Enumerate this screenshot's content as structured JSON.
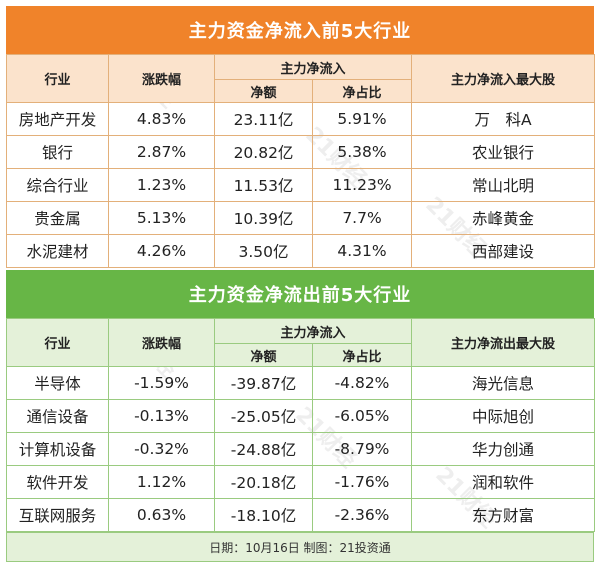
{
  "inflow": {
    "title": "主力资金净流入前5大行业",
    "headers": {
      "industry": "行业",
      "change": "涨跌幅",
      "flow_group": "主力净流入",
      "amount": "净额",
      "ratio": "净占比",
      "top_stock": "主力净流入最大股"
    },
    "rows": [
      {
        "industry": "房地产开发",
        "change": "4.83%",
        "amount": "23.11亿",
        "ratio": "5.91%",
        "stock": "万　科A"
      },
      {
        "industry": "银行",
        "change": "2.87%",
        "amount": "20.82亿",
        "ratio": "5.38%",
        "stock": "农业银行"
      },
      {
        "industry": "综合行业",
        "change": "1.23%",
        "amount": "11.53亿",
        "ratio": "11.23%",
        "stock": "常山北明"
      },
      {
        "industry": "贵金属",
        "change": "5.13%",
        "amount": "10.39亿",
        "ratio": "7.7%",
        "stock": "赤峰黄金"
      },
      {
        "industry": "水泥建材",
        "change": "4.26%",
        "amount": "3.50亿",
        "ratio": "4.31%",
        "stock": "西部建设"
      }
    ]
  },
  "outflow": {
    "title": "主力资金净流出前5大行业",
    "headers": {
      "industry": "行业",
      "change": "涨跌幅",
      "flow_group": "主力净流入",
      "amount": "净额",
      "ratio": "净占比",
      "top_stock": "主力净流出最大股"
    },
    "rows": [
      {
        "industry": "半导体",
        "change": "-1.59%",
        "amount": "-39.87亿",
        "ratio": "-4.82%",
        "stock": "海光信息"
      },
      {
        "industry": "通信设备",
        "change": "-0.13%",
        "amount": "-25.05亿",
        "ratio": "-6.05%",
        "stock": "中际旭创"
      },
      {
        "industry": "计算机设备",
        "change": "-0.32%",
        "amount": "-24.88亿",
        "ratio": "-8.79%",
        "stock": "华力创通"
      },
      {
        "industry": "软件开发",
        "change": "1.12%",
        "amount": "-20.18亿",
        "ratio": "-1.76%",
        "stock": "润和软件"
      },
      {
        "industry": "互联网服务",
        "change": "0.63%",
        "amount": "-18.10亿",
        "ratio": "-2.36%",
        "stock": "东方财富"
      }
    ]
  },
  "footer": {
    "text": "日期：10月16日 制图：21投资通"
  },
  "colors": {
    "inflow_accent": "#F0832A",
    "outflow_accent": "#67B646"
  }
}
